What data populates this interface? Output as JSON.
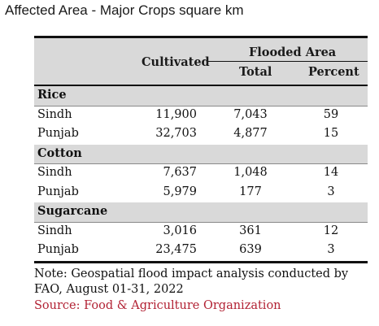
{
  "title": "Affected Area - Major Crops square km",
  "table": {
    "headers": {
      "cultivated": "Cultivated",
      "flooded": "Flooded Area",
      "total": "Total",
      "percent": "Percent"
    },
    "groups": [
      {
        "name": "Rice",
        "rows": [
          {
            "region": "Sindh",
            "cultivated": "11,900",
            "total": "7,043",
            "percent": "59"
          },
          {
            "region": "Punjab",
            "cultivated": "32,703",
            "total": "4,877",
            "percent": "15"
          }
        ]
      },
      {
        "name": "Cotton",
        "rows": [
          {
            "region": "Sindh",
            "cultivated": "7,637",
            "total": "1,048",
            "percent": "14"
          },
          {
            "region": "Punjab",
            "cultivated": "5,979",
            "total": "177",
            "percent": "3"
          }
        ]
      },
      {
        "name": "Sugarcane",
        "rows": [
          {
            "region": "Sindh",
            "cultivated": "3,016",
            "total": "361",
            "percent": "12"
          },
          {
            "region": "Punjab",
            "cultivated": "23,475",
            "total": "639",
            "percent": "3"
          }
        ]
      }
    ]
  },
  "note": "Note: Geospatial flood impact analysis conducted by FAO, August 01-31, 2022",
  "source": "Source: Food & Agriculture Organization",
  "colors": {
    "header_bg": "#d9d9d9",
    "source_text": "#b22234"
  }
}
